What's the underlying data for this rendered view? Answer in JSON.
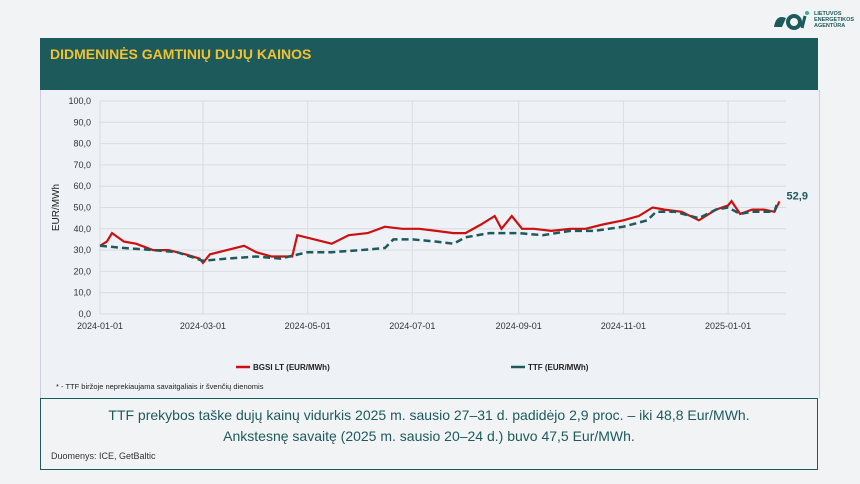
{
  "logo": {
    "text": "LIETUVOS ENERGETIKOS AGENTŪRA"
  },
  "header": {
    "title": "DIDMENINĖS GAMTINIŲ DUJŲ KAINOS"
  },
  "footnote": "* - TTF biržoje neprekiaujama savaitgaliais ir švenčių dienomis",
  "summary": {
    "line1": "TTF prekybos taške dujų kainų vidurkis 2025 m. sausio 27–31 d. padidėjo 2,9 proc. – iki 48,8 Eur/MWh.",
    "line2": "Ankstesnę savaitę (2025 m. sausio 20–24 d.) buvo 47,5 Eur/MWh."
  },
  "source": "Duomenys: ICE, GetBaltic",
  "colors": {
    "bgsi": "#cc1010",
    "ttf": "#1d5a5c",
    "header": "#1d5a5c",
    "title": "#f2c230"
  },
  "chart_data": {
    "type": "line",
    "title": "",
    "ylabel": "EUR/MWh",
    "ylim": [
      0,
      100
    ],
    "yticks": [
      "0,0",
      "10,0",
      "20,0",
      "30,0",
      "40,0",
      "50,0",
      "60,0",
      "70,0",
      "80,0",
      "90,0",
      "100,0"
    ],
    "xticks": [
      "2024-01-01",
      "2024-03-01",
      "2024-05-01",
      "2024-07-01",
      "2024-09-01",
      "2024-11-01",
      "2025-01-01"
    ],
    "last_label": "52,9",
    "legend_position": "bottom",
    "series": [
      {
        "name": "BGSI LT (EUR/MWh)",
        "style": "solid",
        "points": [
          [
            "2024-01-01",
            32
          ],
          [
            "2024-01-05",
            34
          ],
          [
            "2024-01-08",
            38
          ],
          [
            "2024-01-15",
            34
          ],
          [
            "2024-01-22",
            33
          ],
          [
            "2024-02-01",
            30
          ],
          [
            "2024-02-10",
            30
          ],
          [
            "2024-02-20",
            28
          ],
          [
            "2024-02-28",
            26
          ],
          [
            "2024-03-01",
            24
          ],
          [
            "2024-03-05",
            28
          ],
          [
            "2024-03-15",
            30
          ],
          [
            "2024-03-25",
            32
          ],
          [
            "2024-04-01",
            29
          ],
          [
            "2024-04-10",
            27
          ],
          [
            "2024-04-22",
            27
          ],
          [
            "2024-04-25",
            37
          ],
          [
            "2024-05-05",
            35
          ],
          [
            "2024-05-15",
            33
          ],
          [
            "2024-05-25",
            37
          ],
          [
            "2024-06-05",
            38
          ],
          [
            "2024-06-15",
            41
          ],
          [
            "2024-06-25",
            40
          ],
          [
            "2024-07-05",
            40
          ],
          [
            "2024-07-15",
            39
          ],
          [
            "2024-07-25",
            38
          ],
          [
            "2024-08-01",
            38
          ],
          [
            "2024-08-10",
            42
          ],
          [
            "2024-08-18",
            46
          ],
          [
            "2024-08-22",
            40
          ],
          [
            "2024-08-28",
            46
          ],
          [
            "2024-09-03",
            40
          ],
          [
            "2024-09-10",
            40
          ],
          [
            "2024-09-20",
            39
          ],
          [
            "2024-10-01",
            40
          ],
          [
            "2024-10-10",
            40
          ],
          [
            "2024-10-20",
            42
          ],
          [
            "2024-11-01",
            44
          ],
          [
            "2024-11-10",
            46
          ],
          [
            "2024-11-18",
            50
          ],
          [
            "2024-11-25",
            49
          ],
          [
            "2024-12-05",
            48
          ],
          [
            "2024-12-15",
            44
          ],
          [
            "2024-12-25",
            49
          ],
          [
            "2025-01-01",
            51
          ],
          [
            "2025-01-03",
            53
          ],
          [
            "2025-01-08",
            47
          ],
          [
            "2025-01-15",
            49
          ],
          [
            "2025-01-22",
            49
          ],
          [
            "2025-01-28",
            48
          ],
          [
            "2025-01-31",
            52.9
          ]
        ]
      },
      {
        "name": "TTF (EUR/MWh)",
        "style": "dashed",
        "points": [
          [
            "2024-01-01",
            32
          ],
          [
            "2024-01-15",
            31
          ],
          [
            "2024-02-01",
            30
          ],
          [
            "2024-02-15",
            29
          ],
          [
            "2024-03-01",
            25
          ],
          [
            "2024-03-15",
            26
          ],
          [
            "2024-04-01",
            27
          ],
          [
            "2024-04-15",
            26
          ],
          [
            "2024-05-01",
            29
          ],
          [
            "2024-05-15",
            29
          ],
          [
            "2024-06-01",
            30
          ],
          [
            "2024-06-15",
            31
          ],
          [
            "2024-06-20",
            35
          ],
          [
            "2024-07-01",
            35
          ],
          [
            "2024-07-15",
            34
          ],
          [
            "2024-07-25",
            33
          ],
          [
            "2024-08-01",
            36
          ],
          [
            "2024-08-15",
            38
          ],
          [
            "2024-09-01",
            38
          ],
          [
            "2024-09-15",
            37
          ],
          [
            "2024-10-01",
            39
          ],
          [
            "2024-10-15",
            39
          ],
          [
            "2024-11-01",
            41
          ],
          [
            "2024-11-15",
            44
          ],
          [
            "2024-11-20",
            48
          ],
          [
            "2024-12-01",
            48
          ],
          [
            "2024-12-15",
            45
          ],
          [
            "2024-12-25",
            49
          ],
          [
            "2025-01-01",
            50
          ],
          [
            "2025-01-08",
            47
          ],
          [
            "2025-01-15",
            48
          ],
          [
            "2025-01-28",
            48
          ],
          [
            "2025-01-30",
            52.9
          ]
        ]
      }
    ]
  }
}
